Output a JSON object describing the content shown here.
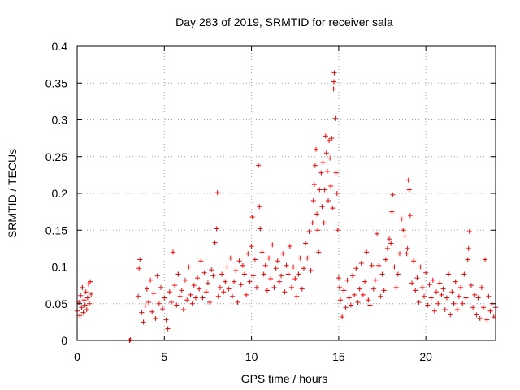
{
  "chart_data": {
    "type": "scatter",
    "title": "Day 283 of 2019, SRMTID for receiver sala",
    "xlabel": "GPS time / hours",
    "ylabel": "SRMTID / TECUs",
    "xlim": [
      0,
      24
    ],
    "ylim": [
      0,
      0.4
    ],
    "xticks": [
      0,
      5,
      10,
      15,
      20
    ],
    "xtick_labels": [
      "0",
      "5",
      "10",
      "15",
      "20"
    ],
    "yticks": [
      0,
      0.05,
      0.1,
      0.15,
      0.2,
      0.25,
      0.3,
      0.35,
      0.4
    ],
    "ytick_labels": [
      "0",
      "0.05",
      "0.1",
      "0.15",
      "0.2",
      "0.25",
      "0.3",
      "0.35",
      "0.4"
    ],
    "grid": true,
    "marker": "plus",
    "color": "#ff0000",
    "series": [
      {
        "name": "SRMTID",
        "points": [
          [
            0.0,
            0.04
          ],
          [
            0.1,
            0.052
          ],
          [
            0.15,
            0.034
          ],
          [
            0.2,
            0.061
          ],
          [
            0.25,
            0.045
          ],
          [
            0.3,
            0.072
          ],
          [
            0.35,
            0.038
          ],
          [
            0.4,
            0.055
          ],
          [
            0.45,
            0.048
          ],
          [
            0.5,
            0.066
          ],
          [
            0.55,
            0.042
          ],
          [
            0.6,
            0.058
          ],
          [
            0.65,
            0.077
          ],
          [
            0.7,
            0.05
          ],
          [
            0.75,
            0.08
          ],
          [
            0.8,
            0.063
          ],
          [
            3.0,
            0.0
          ],
          [
            3.05,
            0.001
          ],
          [
            3.5,
            0.06
          ],
          [
            3.55,
            0.098
          ],
          [
            3.6,
            0.11
          ],
          [
            3.7,
            0.038
          ],
          [
            3.8,
            0.025
          ],
          [
            3.9,
            0.047
          ],
          [
            4.0,
            0.07
          ],
          [
            4.1,
            0.052
          ],
          [
            4.2,
            0.082
          ],
          [
            4.3,
            0.039
          ],
          [
            4.4,
            0.064
          ],
          [
            4.5,
            0.03
          ],
          [
            4.6,
            0.088
          ],
          [
            4.7,
            0.05
          ],
          [
            4.8,
            0.072
          ],
          [
            4.9,
            0.043
          ],
          [
            5.0,
            0.058
          ],
          [
            5.1,
            0.028
          ],
          [
            5.2,
            0.016
          ],
          [
            5.3,
            0.066
          ],
          [
            5.4,
            0.052
          ],
          [
            5.5,
            0.12
          ],
          [
            5.6,
            0.075
          ],
          [
            5.7,
            0.048
          ],
          [
            5.8,
            0.09
          ],
          [
            5.9,
            0.06
          ],
          [
            6.0,
            0.068
          ],
          [
            6.1,
            0.042
          ],
          [
            6.2,
            0.082
          ],
          [
            6.3,
            0.055
          ],
          [
            6.4,
            0.1
          ],
          [
            6.5,
            0.062
          ],
          [
            6.6,
            0.05
          ],
          [
            6.7,
            0.075
          ],
          [
            6.8,
            0.058
          ],
          [
            6.9,
            0.085
          ],
          [
            7.0,
            0.07
          ],
          [
            7.1,
            0.108
          ],
          [
            7.2,
            0.058
          ],
          [
            7.3,
            0.092
          ],
          [
            7.4,
            0.066
          ],
          [
            7.5,
            0.078
          ],
          [
            7.6,
            0.052
          ],
          [
            7.7,
            0.096
          ],
          [
            7.8,
            0.088
          ],
          [
            7.9,
            0.133
          ],
          [
            8.0,
            0.152
          ],
          [
            8.05,
            0.201
          ],
          [
            8.1,
            0.06
          ],
          [
            8.2,
            0.072
          ],
          [
            8.3,
            0.09
          ],
          [
            8.4,
            0.066
          ],
          [
            8.5,
            0.08
          ],
          [
            8.6,
            0.1
          ],
          [
            8.7,
            0.07
          ],
          [
            8.8,
            0.112
          ],
          [
            8.9,
            0.06
          ],
          [
            9.0,
            0.08
          ],
          [
            9.1,
            0.095
          ],
          [
            9.2,
            0.052
          ],
          [
            9.3,
            0.108
          ],
          [
            9.4,
            0.076
          ],
          [
            9.5,
            0.102
          ],
          [
            9.6,
            0.09
          ],
          [
            9.7,
            0.062
          ],
          [
            9.8,
            0.118
          ],
          [
            9.9,
            0.08
          ],
          [
            10.0,
            0.128
          ],
          [
            10.05,
            0.168
          ],
          [
            10.1,
            0.088
          ],
          [
            10.2,
            0.11
          ],
          [
            10.3,
            0.072
          ],
          [
            10.4,
            0.238
          ],
          [
            10.45,
            0.182
          ],
          [
            10.5,
            0.152
          ],
          [
            10.6,
            0.12
          ],
          [
            10.7,
            0.09
          ],
          [
            10.8,
            0.102
          ],
          [
            10.9,
            0.068
          ],
          [
            11.0,
            0.112
          ],
          [
            11.1,
            0.084
          ],
          [
            11.2,
            0.13
          ],
          [
            11.3,
            0.072
          ],
          [
            11.4,
            0.098
          ],
          [
            11.5,
            0.108
          ],
          [
            11.6,
            0.08
          ],
          [
            11.7,
            0.088
          ],
          [
            11.8,
            0.118
          ],
          [
            11.9,
            0.066
          ],
          [
            12.0,
            0.102
          ],
          [
            12.1,
            0.09
          ],
          [
            12.2,
            0.128
          ],
          [
            12.3,
            0.072
          ],
          [
            12.4,
            0.1
          ],
          [
            12.5,
            0.084
          ],
          [
            12.6,
            0.06
          ],
          [
            12.7,
            0.09
          ],
          [
            12.8,
            0.112
          ],
          [
            12.9,
            0.07
          ],
          [
            13.0,
            0.098
          ],
          [
            13.1,
            0.132
          ],
          [
            13.2,
            0.112
          ],
          [
            13.3,
            0.148
          ],
          [
            13.4,
            0.095
          ],
          [
            13.5,
            0.16
          ],
          [
            13.55,
            0.19
          ],
          [
            13.6,
            0.212
          ],
          [
            13.65,
            0.238
          ],
          [
            13.7,
            0.26
          ],
          [
            13.75,
            0.172
          ],
          [
            13.8,
            0.15
          ],
          [
            13.85,
            0.12
          ],
          [
            13.9,
            0.205
          ],
          [
            14.0,
            0.228
          ],
          [
            14.05,
            0.182
          ],
          [
            14.1,
            0.242
          ],
          [
            14.15,
            0.16
          ],
          [
            14.2,
            0.205
          ],
          [
            14.25,
            0.278
          ],
          [
            14.3,
            0.255
          ],
          [
            14.35,
            0.23
          ],
          [
            14.4,
            0.19
          ],
          [
            14.45,
            0.272
          ],
          [
            14.5,
            0.248
          ],
          [
            14.55,
            0.21
          ],
          [
            14.6,
            0.275
          ],
          [
            14.65,
            0.18
          ],
          [
            14.7,
            0.342
          ],
          [
            14.72,
            0.352
          ],
          [
            14.75,
            0.364
          ],
          [
            14.8,
            0.302
          ],
          [
            14.85,
            0.228
          ],
          [
            14.9,
            0.2
          ],
          [
            14.95,
            0.15
          ],
          [
            15.0,
            0.085
          ],
          [
            15.05,
            0.072
          ],
          [
            15.1,
            0.055
          ],
          [
            15.2,
            0.032
          ],
          [
            15.3,
            0.068
          ],
          [
            15.4,
            0.045
          ],
          [
            15.5,
            0.082
          ],
          [
            15.6,
            0.058
          ],
          [
            15.7,
            0.048
          ],
          [
            15.8,
            0.088
          ],
          [
            15.9,
            0.062
          ],
          [
            16.0,
            0.098
          ],
          [
            16.1,
            0.052
          ],
          [
            16.2,
            0.07
          ],
          [
            16.3,
            0.105
          ],
          [
            16.4,
            0.062
          ],
          [
            16.5,
            0.08
          ],
          [
            16.6,
            0.12
          ],
          [
            16.7,
            0.055
          ],
          [
            16.8,
            0.048
          ],
          [
            16.9,
            0.102
          ],
          [
            17.0,
            0.07
          ],
          [
            17.1,
            0.082
          ],
          [
            17.2,
            0.145
          ],
          [
            17.3,
            0.102
          ],
          [
            17.4,
            0.06
          ],
          [
            17.5,
            0.09
          ],
          [
            17.6,
            0.068
          ],
          [
            17.7,
            0.11
          ],
          [
            17.8,
            0.125
          ],
          [
            17.9,
            0.138
          ],
          [
            18.0,
            0.132
          ],
          [
            18.05,
            0.175
          ],
          [
            18.1,
            0.198
          ],
          [
            18.2,
            0.1
          ],
          [
            18.3,
            0.072
          ],
          [
            18.4,
            0.09
          ],
          [
            18.5,
            0.118
          ],
          [
            18.6,
            0.165
          ],
          [
            18.7,
            0.15
          ],
          [
            18.8,
            0.142
          ],
          [
            18.9,
            0.118
          ],
          [
            18.95,
            0.125
          ],
          [
            19.0,
            0.218
          ],
          [
            19.05,
            0.205
          ],
          [
            19.1,
            0.17
          ],
          [
            19.2,
            0.078
          ],
          [
            19.3,
            0.108
          ],
          [
            19.4,
            0.068
          ],
          [
            19.5,
            0.085
          ],
          [
            19.6,
            0.052
          ],
          [
            19.7,
            0.1
          ],
          [
            19.8,
            0.072
          ],
          [
            19.9,
            0.06
          ],
          [
            20.0,
            0.092
          ],
          [
            20.1,
            0.048
          ],
          [
            20.2,
            0.076
          ],
          [
            20.3,
            0.058
          ],
          [
            20.4,
            0.082
          ],
          [
            20.5,
            0.04
          ],
          [
            20.6,
            0.066
          ],
          [
            20.7,
            0.05
          ],
          [
            20.8,
            0.078
          ],
          [
            20.9,
            0.062
          ],
          [
            21.0,
            0.07
          ],
          [
            21.1,
            0.042
          ],
          [
            21.2,
            0.058
          ],
          [
            21.3,
            0.09
          ],
          [
            21.4,
            0.035
          ],
          [
            21.5,
            0.066
          ],
          [
            21.6,
            0.05
          ],
          [
            21.7,
            0.08
          ],
          [
            21.8,
            0.042
          ],
          [
            21.9,
            0.06
          ],
          [
            22.0,
            0.072
          ],
          [
            22.1,
            0.05
          ],
          [
            22.2,
            0.09
          ],
          [
            22.3,
            0.058
          ],
          [
            22.4,
            0.11
          ],
          [
            22.45,
            0.125
          ],
          [
            22.5,
            0.148
          ],
          [
            22.6,
            0.075
          ],
          [
            22.7,
            0.045
          ],
          [
            22.8,
            0.062
          ],
          [
            22.9,
            0.035
          ],
          [
            23.0,
            0.058
          ],
          [
            23.1,
            0.03
          ],
          [
            23.2,
            0.072
          ],
          [
            23.3,
            0.045
          ],
          [
            23.4,
            0.11
          ],
          [
            23.5,
            0.028
          ],
          [
            23.6,
            0.06
          ],
          [
            23.7,
            0.04
          ],
          [
            23.8,
            0.05
          ],
          [
            23.9,
            0.032
          ],
          [
            24.0,
            0.045
          ]
        ]
      }
    ]
  }
}
